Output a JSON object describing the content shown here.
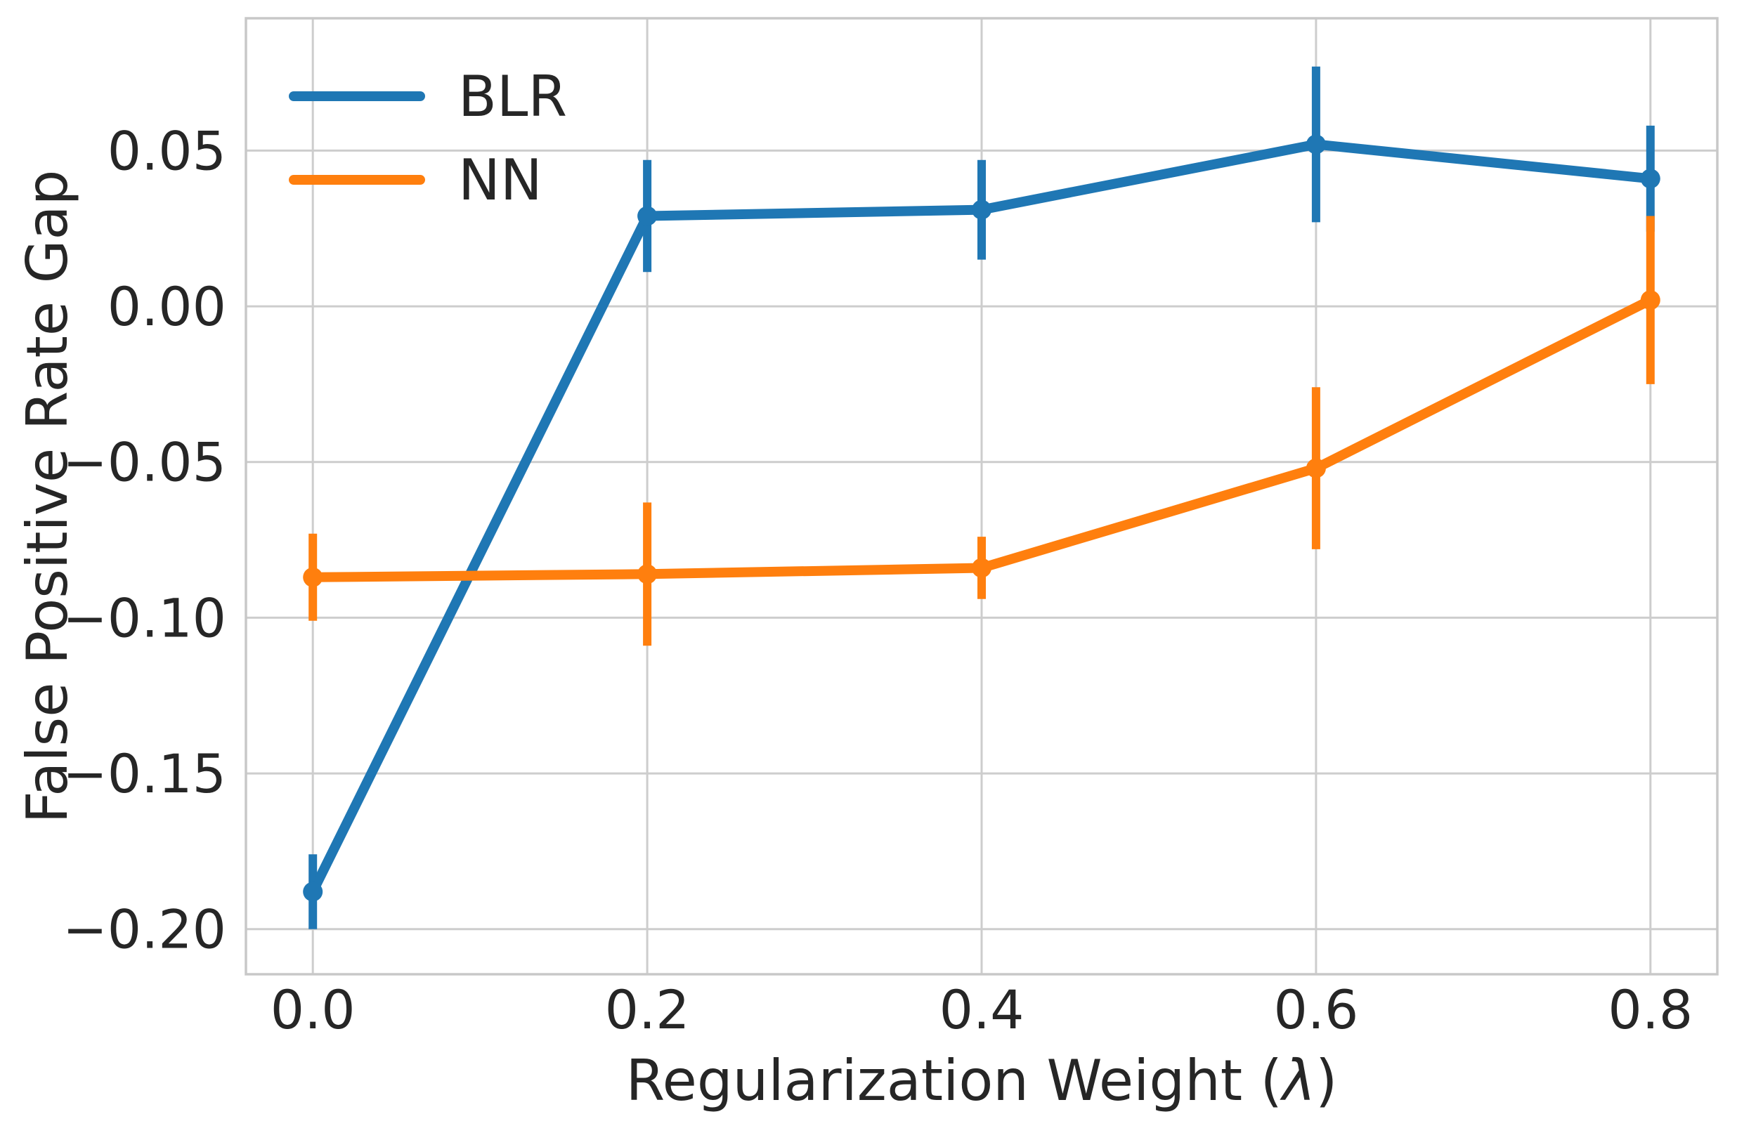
{
  "chart_data": {
    "type": "line",
    "title": "",
    "xlabel": "Regularization Weight (λ)",
    "ylabel": "False Positive Rate Gap",
    "x": [
      0.0,
      0.2,
      0.4,
      0.6,
      0.8
    ],
    "x_tick_labels": [
      "0.0",
      "0.2",
      "0.4",
      "0.6",
      "0.8"
    ],
    "y_ticks": [
      0.05,
      0.0,
      -0.05,
      -0.1,
      -0.15,
      -0.2
    ],
    "y_tick_labels": [
      "0.05",
      "0.00",
      "−0.05",
      "−0.10",
      "−0.15",
      "−0.20"
    ],
    "xlim": [
      -0.04,
      0.84
    ],
    "ylim": [
      -0.2145,
      0.0925
    ],
    "grid": true,
    "legend": {
      "position": "upper-left",
      "entries": [
        "BLR",
        "NN"
      ]
    },
    "series": [
      {
        "name": "BLR",
        "color": "#1f77b4",
        "x": [
          0.0,
          0.2,
          0.4,
          0.6,
          0.8
        ],
        "y": [
          -0.188,
          0.029,
          0.031,
          0.052,
          0.041
        ],
        "yerr": [
          0.012,
          0.018,
          0.016,
          0.025,
          0.017
        ]
      },
      {
        "name": "NN",
        "color": "#ff7f0e",
        "x": [
          0.0,
          0.2,
          0.4,
          0.6,
          0.8
        ],
        "y": [
          -0.087,
          -0.086,
          -0.084,
          -0.052,
          0.002
        ],
        "yerr": [
          0.014,
          0.023,
          0.01,
          0.026,
          0.027
        ]
      }
    ],
    "style": {
      "grid_color": "#cdcdcd",
      "spine_color": "#c8c8c8",
      "text_color": "#262626",
      "background": "#ffffff"
    }
  }
}
